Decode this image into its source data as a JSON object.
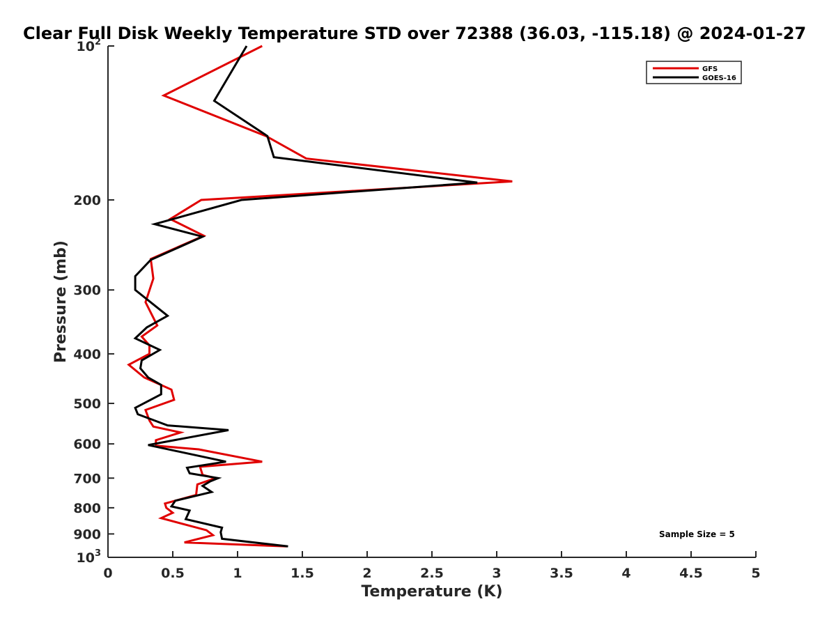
{
  "chart_data": {
    "type": "line",
    "title": "Clear Full Disk Weekly Temperature STD over 72388 (36.03, -115.18) @ 2024-01-27",
    "xlabel": "Temperature (K)",
    "ylabel": "Pressure (mb)",
    "xlim": [
      0,
      5
    ],
    "ylim": [
      1000,
      100
    ],
    "y_scale": "log",
    "y_reversed": true,
    "grid": false,
    "legend_position": "top-right",
    "x_ticks": [
      {
        "value": 0,
        "label": "0"
      },
      {
        "value": 0.5,
        "label": "0.5"
      },
      {
        "value": 1,
        "label": "1"
      },
      {
        "value": 1.5,
        "label": "1.5"
      },
      {
        "value": 2,
        "label": "2"
      },
      {
        "value": 2.5,
        "label": "2.5"
      },
      {
        "value": 3,
        "label": "3"
      },
      {
        "value": 3.5,
        "label": "3.5"
      },
      {
        "value": 4,
        "label": "4"
      },
      {
        "value": 4.5,
        "label": "4.5"
      },
      {
        "value": 5,
        "label": "5"
      }
    ],
    "y_ticks": [
      {
        "value": 100,
        "label": "10",
        "sup": "2"
      },
      {
        "value": 200,
        "label": "200",
        "sup": ""
      },
      {
        "value": 300,
        "label": "300",
        "sup": ""
      },
      {
        "value": 400,
        "label": "400",
        "sup": ""
      },
      {
        "value": 500,
        "label": "500",
        "sup": ""
      },
      {
        "value": 600,
        "label": "600",
        "sup": ""
      },
      {
        "value": 700,
        "label": "700",
        "sup": ""
      },
      {
        "value": 800,
        "label": "800",
        "sup": ""
      },
      {
        "value": 900,
        "label": "900",
        "sup": ""
      },
      {
        "value": 1000,
        "label": "10",
        "sup": "3"
      }
    ],
    "annotation": "Sample Size = 5",
    "series": [
      {
        "name": "GFS",
        "color": "#e00000",
        "points": [
          [
            1.19,
            100
          ],
          [
            0.43,
            125
          ],
          [
            1.22,
            150
          ],
          [
            1.53,
            166
          ],
          [
            3.12,
            184
          ],
          [
            0.72,
            200
          ],
          [
            0.48,
            218
          ],
          [
            0.74,
            235
          ],
          [
            0.33,
            261
          ],
          [
            0.35,
            285
          ],
          [
            0.29,
            317
          ],
          [
            0.38,
            352
          ],
          [
            0.26,
            370
          ],
          [
            0.32,
            385
          ],
          [
            0.32,
            400
          ],
          [
            0.16,
            420
          ],
          [
            0.28,
            445
          ],
          [
            0.49,
            470
          ],
          [
            0.51,
            492
          ],
          [
            0.29,
            515
          ],
          [
            0.32,
            540
          ],
          [
            0.35,
            555
          ],
          [
            0.56,
            570
          ],
          [
            0.37,
            590
          ],
          [
            0.37,
            605
          ],
          [
            0.7,
            615
          ],
          [
            1.19,
            650
          ],
          [
            0.71,
            665
          ],
          [
            0.73,
            690
          ],
          [
            0.83,
            700
          ],
          [
            0.69,
            720
          ],
          [
            0.68,
            755
          ],
          [
            0.44,
            785
          ],
          [
            0.45,
            800
          ],
          [
            0.5,
            818
          ],
          [
            0.41,
            838
          ],
          [
            0.76,
            885
          ],
          [
            0.81,
            905
          ],
          [
            0.59,
            935
          ],
          [
            1.38,
            952
          ]
        ]
      },
      {
        "name": "GOES-16",
        "color": "#000000",
        "points": [
          [
            1.07,
            100
          ],
          [
            0.82,
            128
          ],
          [
            1.23,
            150
          ],
          [
            1.28,
            165
          ],
          [
            2.85,
            185
          ],
          [
            1.03,
            200
          ],
          [
            0.36,
            223
          ],
          [
            0.73,
            236
          ],
          [
            0.33,
            262
          ],
          [
            0.21,
            282
          ],
          [
            0.21,
            300
          ],
          [
            0.46,
            337
          ],
          [
            0.3,
            355
          ],
          [
            0.21,
            373
          ],
          [
            0.4,
            393
          ],
          [
            0.26,
            412
          ],
          [
            0.25,
            427
          ],
          [
            0.31,
            445
          ],
          [
            0.41,
            460
          ],
          [
            0.41,
            480
          ],
          [
            0.21,
            510
          ],
          [
            0.23,
            525
          ],
          [
            0.46,
            552
          ],
          [
            0.93,
            564
          ],
          [
            0.31,
            603
          ],
          [
            0.91,
            650
          ],
          [
            0.61,
            668
          ],
          [
            0.63,
            685
          ],
          [
            0.85,
            700
          ],
          [
            0.79,
            710
          ],
          [
            0.73,
            725
          ],
          [
            0.8,
            745
          ],
          [
            0.52,
            775
          ],
          [
            0.49,
            795
          ],
          [
            0.63,
            810
          ],
          [
            0.6,
            842
          ],
          [
            0.88,
            875
          ],
          [
            0.87,
            893
          ],
          [
            0.88,
            920
          ],
          [
            1.39,
            952
          ]
        ]
      }
    ]
  }
}
